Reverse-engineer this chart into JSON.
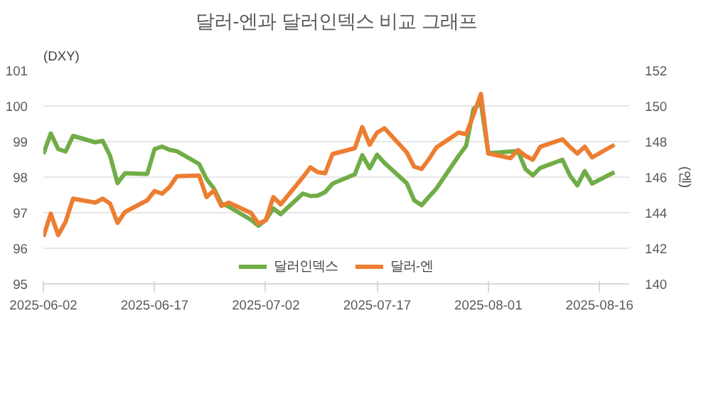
{
  "chart_data": {
    "type": "line",
    "title": "달러-엔과 달러인덱스 비교 그래프",
    "ylabel": "(DXY)",
    "y2label": "(엔)",
    "x": [
      "2025-06-02",
      "2025-06-03",
      "2025-06-04",
      "2025-06-05",
      "2025-06-06",
      "2025-06-09",
      "2025-06-10",
      "2025-06-11",
      "2025-06-12",
      "2025-06-13",
      "2025-06-16",
      "2025-06-17",
      "2025-06-18",
      "2025-06-19",
      "2025-06-20",
      "2025-06-23",
      "2025-06-24",
      "2025-06-25",
      "2025-06-26",
      "2025-06-27",
      "2025-06-30",
      "2025-07-01",
      "2025-07-02",
      "2025-07-03",
      "2025-07-04",
      "2025-07-07",
      "2025-07-08",
      "2025-07-09",
      "2025-07-10",
      "2025-07-11",
      "2025-07-14",
      "2025-07-15",
      "2025-07-16",
      "2025-07-17",
      "2025-07-18",
      "2025-07-21",
      "2025-07-22",
      "2025-07-23",
      "2025-07-24",
      "2025-07-25",
      "2025-07-28",
      "2025-07-29",
      "2025-07-30",
      "2025-07-31",
      "2025-08-01",
      "2025-08-04",
      "2025-08-05",
      "2025-08-06",
      "2025-08-07",
      "2025-08-08",
      "2025-08-11",
      "2025-08-12",
      "2025-08-13",
      "2025-08-14",
      "2025-08-15",
      "2025-08-18"
    ],
    "series": [
      {
        "name": "달러인덱스",
        "color": "#70ad47",
        "values": [
          98.65,
          99.23,
          98.79,
          98.72,
          99.16,
          98.98,
          99.02,
          98.6,
          97.83,
          98.11,
          98.09,
          98.79,
          98.86,
          98.77,
          98.73,
          98.37,
          97.95,
          97.68,
          97.26,
          97.17,
          96.8,
          96.63,
          96.8,
          97.12,
          96.96,
          97.54,
          97.47,
          97.48,
          97.58,
          97.82,
          98.08,
          98.62,
          98.25,
          98.63,
          98.4,
          97.83,
          97.35,
          97.21,
          97.45,
          97.68,
          98.6,
          98.88,
          99.92,
          100.09,
          98.67,
          98.72,
          98.74,
          98.23,
          98.05,
          98.26,
          98.49,
          98.05,
          97.77,
          98.17,
          97.82,
          98.14
        ]
      },
      {
        "name": "달러-엔",
        "color": "#ed7d31",
        "axis": "y2",
        "values": [
          142.65,
          143.95,
          142.74,
          143.49,
          144.79,
          144.57,
          144.79,
          144.51,
          143.43,
          144.04,
          144.7,
          145.22,
          145.07,
          145.44,
          146.05,
          146.09,
          144.88,
          145.25,
          144.38,
          144.57,
          143.99,
          143.39,
          143.58,
          144.88,
          144.47,
          146.0,
          146.55,
          146.28,
          146.22,
          147.3,
          147.63,
          148.82,
          147.82,
          148.51,
          148.75,
          147.39,
          146.59,
          146.46,
          147.02,
          147.67,
          148.51,
          148.41,
          149.5,
          150.68,
          147.33,
          147.07,
          147.52,
          147.2,
          146.98,
          147.71,
          148.13,
          147.7,
          147.33,
          147.71,
          147.11,
          147.82
        ]
      }
    ],
    "xlim": [
      "2025-06-02",
      "2025-08-20"
    ],
    "xticks": [
      "2025-06-02",
      "2025-06-17",
      "2025-07-02",
      "2025-07-17",
      "2025-08-01",
      "2025-08-16"
    ],
    "ylim": [
      95,
      101
    ],
    "yticks": [
      95,
      96,
      97,
      98,
      99,
      100,
      101
    ],
    "y2lim": [
      140,
      152
    ],
    "y2ticks": [
      140,
      142,
      144,
      146,
      148,
      150,
      152
    ],
    "grid": "y",
    "legend": "bottom"
  }
}
